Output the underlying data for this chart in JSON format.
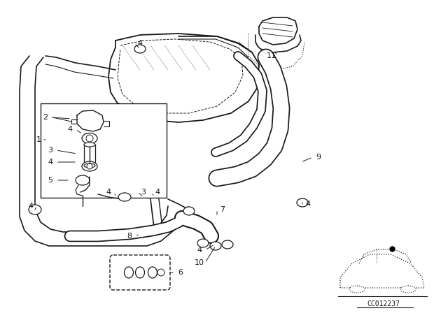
{
  "bg_color": "#ffffff",
  "line_color": "#1a1a1a",
  "diagram_code": "CC012237",
  "figsize": [
    6.4,
    4.48
  ],
  "dpi": 100,
  "labels": [
    [
      "4",
      200,
      62
    ],
    [
      "11",
      390,
      75
    ],
    [
      "2",
      75,
      165
    ],
    [
      "4",
      108,
      185
    ],
    [
      "1",
      55,
      200
    ],
    [
      "3",
      80,
      205
    ],
    [
      "4",
      80,
      230
    ],
    [
      "9",
      455,
      220
    ],
    [
      "5",
      80,
      255
    ],
    [
      "4",
      155,
      272
    ],
    [
      "3",
      205,
      272
    ],
    [
      "4",
      225,
      272
    ],
    [
      "4",
      48,
      295
    ],
    [
      "7",
      330,
      295
    ],
    [
      "4",
      430,
      295
    ],
    [
      "8",
      185,
      335
    ],
    [
      "4",
      285,
      355
    ],
    [
      "10",
      283,
      375
    ],
    [
      "6",
      195,
      390
    ]
  ]
}
